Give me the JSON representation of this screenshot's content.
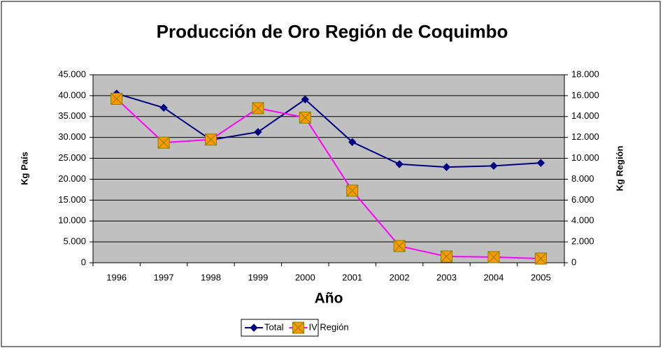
{
  "chart_data": {
    "type": "line",
    "title": "Producción de Oro Región de Coquimbo",
    "x_label": "Año",
    "y_label": "Kg País",
    "y2_label": "Kg  Región",
    "categories": [
      "1996",
      "1997",
      "1998",
      "1999",
      "2000",
      "2001",
      "2002",
      "2003",
      "2004",
      "2005"
    ],
    "series": [
      {
        "name": "Total",
        "color": "#000080",
        "marker": "diamond",
        "values": [
          40500,
          37100,
          29400,
          31300,
          39100,
          28900,
          23600,
          22900,
          23200,
          23900
        ]
      },
      {
        "name": "IV Región",
        "color": "#FF00FF",
        "marker": "square-x",
        "axis": "y2",
        "values": [
          15700,
          11500,
          11800,
          14800,
          13900,
          6900,
          1600,
          600,
          540,
          400
        ]
      }
    ],
    "ylim": [
      0,
      45000
    ],
    "yticks": [
      0,
      {
        "value": 5000,
        "label": "5.000"
      },
      {
        "value": 10000,
        "label": "10.000"
      },
      {
        "value": 15000,
        "label": "15.000"
      },
      {
        "value": 20000,
        "label": "20.000"
      },
      {
        "value": 25000,
        "label": "25.000"
      },
      {
        "value": 30000,
        "label": "30.000"
      },
      {
        "value": 35000,
        "label": "35.000"
      },
      {
        "value": 40000,
        "label": "40.000"
      },
      {
        "value": 45000,
        "label": "45.000"
      }
    ],
    "y2lim": [
      0,
      18000
    ],
    "y2ticks": [
      0,
      {
        "value": 2000,
        "label": "2.000"
      },
      {
        "value": 4000,
        "label": "4.000"
      },
      {
        "value": 6000,
        "label": "6.000"
      },
      {
        "value": 8000,
        "label": "8.000"
      },
      {
        "value": 10000,
        "label": "10.000"
      },
      {
        "value": 12000,
        "label": "12.000"
      },
      {
        "value": 14000,
        "label": "14.000"
      },
      {
        "value": 16000,
        "label": "16.000"
      },
      {
        "value": 18000,
        "label": "18.000"
      }
    ],
    "grid": true,
    "legend": "bottom"
  }
}
